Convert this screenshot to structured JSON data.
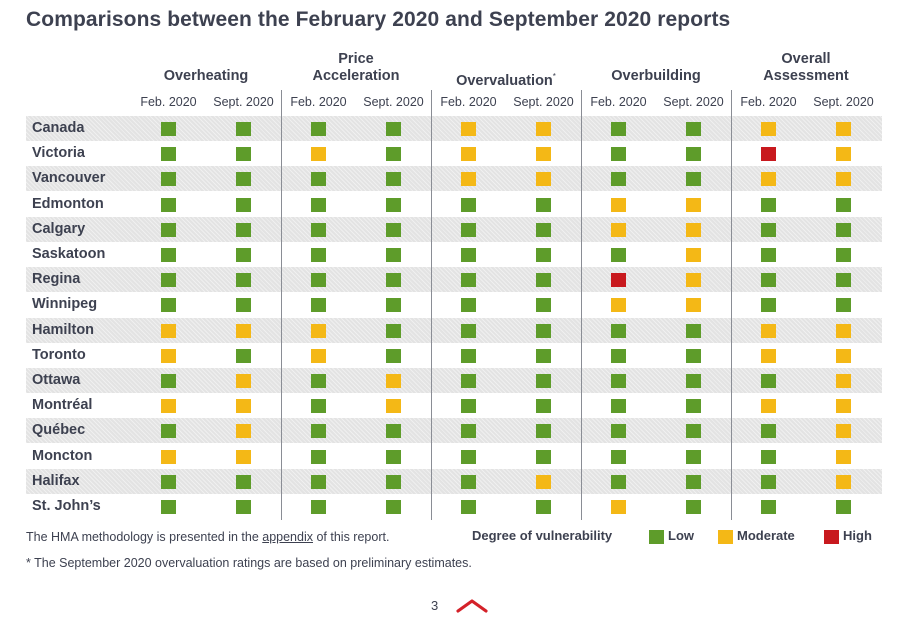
{
  "title": "Comparisons between the February 2020 and September 2020 reports",
  "groups": [
    {
      "label_line1": "",
      "label_line2": "Overheating",
      "asterisk": ""
    },
    {
      "label_line1": "Price",
      "label_line2": "Acceleration",
      "asterisk": ""
    },
    {
      "label_line1": "",
      "label_line2": "Overvaluation",
      "asterisk": "*"
    },
    {
      "label_line1": "",
      "label_line2": "Overbuilding",
      "asterisk": ""
    },
    {
      "label_line1": "Overall",
      "label_line2": "Assessment",
      "asterisk": ""
    }
  ],
  "sub_headers": [
    "Feb. 2020",
    "Sept. 2020"
  ],
  "rows": [
    {
      "city": "Canada",
      "ratings": [
        "L",
        "L",
        "L",
        "L",
        "M",
        "M",
        "L",
        "L",
        "M",
        "M"
      ]
    },
    {
      "city": "Victoria",
      "ratings": [
        "L",
        "L",
        "M",
        "L",
        "M",
        "M",
        "L",
        "L",
        "H",
        "M"
      ]
    },
    {
      "city": "Vancouver",
      "ratings": [
        "L",
        "L",
        "L",
        "L",
        "M",
        "M",
        "L",
        "L",
        "M",
        "M"
      ]
    },
    {
      "city": "Edmonton",
      "ratings": [
        "L",
        "L",
        "L",
        "L",
        "L",
        "L",
        "M",
        "M",
        "L",
        "L"
      ]
    },
    {
      "city": "Calgary",
      "ratings": [
        "L",
        "L",
        "L",
        "L",
        "L",
        "L",
        "M",
        "M",
        "L",
        "L"
      ]
    },
    {
      "city": "Saskatoon",
      "ratings": [
        "L",
        "L",
        "L",
        "L",
        "L",
        "L",
        "L",
        "M",
        "L",
        "L"
      ]
    },
    {
      "city": "Regina",
      "ratings": [
        "L",
        "L",
        "L",
        "L",
        "L",
        "L",
        "H",
        "M",
        "L",
        "L"
      ]
    },
    {
      "city": "Winnipeg",
      "ratings": [
        "L",
        "L",
        "L",
        "L",
        "L",
        "L",
        "M",
        "M",
        "L",
        "L"
      ]
    },
    {
      "city": "Hamilton",
      "ratings": [
        "M",
        "M",
        "M",
        "L",
        "L",
        "L",
        "L",
        "L",
        "M",
        "M"
      ]
    },
    {
      "city": "Toronto",
      "ratings": [
        "M",
        "L",
        "M",
        "L",
        "L",
        "L",
        "L",
        "L",
        "M",
        "M"
      ]
    },
    {
      "city": "Ottawa",
      "ratings": [
        "L",
        "M",
        "L",
        "M",
        "L",
        "L",
        "L",
        "L",
        "L",
        "M"
      ]
    },
    {
      "city": "Montréal",
      "ratings": [
        "M",
        "M",
        "L",
        "M",
        "L",
        "L",
        "L",
        "L",
        "M",
        "M"
      ]
    },
    {
      "city": "Québec",
      "ratings": [
        "L",
        "M",
        "L",
        "L",
        "L",
        "L",
        "L",
        "L",
        "L",
        "M"
      ]
    },
    {
      "city": "Moncton",
      "ratings": [
        "M",
        "M",
        "L",
        "L",
        "L",
        "L",
        "L",
        "L",
        "L",
        "M"
      ]
    },
    {
      "city": "Halifax",
      "ratings": [
        "L",
        "L",
        "L",
        "L",
        "L",
        "M",
        "L",
        "L",
        "L",
        "M"
      ]
    },
    {
      "city": "St. John’s",
      "ratings": [
        "L",
        "L",
        "L",
        "L",
        "L",
        "L",
        "M",
        "L",
        "L",
        "L"
      ]
    }
  ],
  "notes": {
    "methodology_prefix": "The HMA methodology is presented in the ",
    "methodology_link": "appendix",
    "methodology_suffix": " of this report.",
    "footnote": "* The September 2020 overvaluation ratings are based on preliminary estimates."
  },
  "legend": {
    "title": "Degree of vulnerability",
    "items": [
      {
        "code": "L",
        "label": "Low",
        "color": "#5e9c2a"
      },
      {
        "code": "M",
        "label": "Moderate",
        "color": "#f4b816"
      },
      {
        "code": "H",
        "label": "High",
        "color": "#c8191e"
      }
    ]
  },
  "page_number": "3",
  "colors": {
    "low": "#5e9c2a",
    "moderate": "#f4b816",
    "high": "#c8191e",
    "accent": "#d42129"
  }
}
